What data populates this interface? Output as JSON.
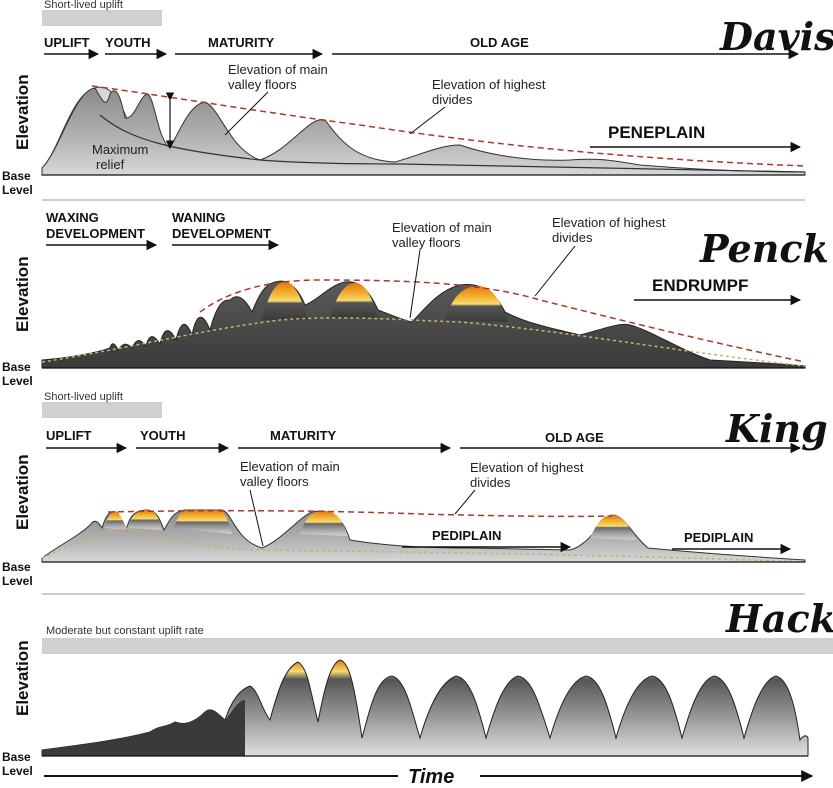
{
  "common": {
    "elevation_label": "Elevation",
    "base_label": "Base",
    "level_label": "Level",
    "time_label": "Time"
  },
  "davis": {
    "title": "Davis",
    "uplift_bar": "Short-lived uplift",
    "stages": [
      "UPLIFT",
      "YOUTH",
      "MATURITY",
      "OLD AGE"
    ],
    "valley_label": [
      "Elevation of main",
      "valley floors"
    ],
    "divide_label": [
      "Elevation of highest",
      "divides"
    ],
    "relief_label": [
      "Maximum",
      "relief"
    ],
    "end_label": "PENEPLAIN"
  },
  "penck": {
    "title": "Penck",
    "stage1": [
      "WAXING",
      "DEVELOPMENT"
    ],
    "stage2": [
      "WANING",
      "DEVELOPMENT"
    ],
    "valley_label": [
      "Elevation of main",
      "valley floors"
    ],
    "divide_label": [
      "Elevation of highest",
      "divides"
    ],
    "end_label": "ENDRUMPF"
  },
  "king": {
    "title": "King",
    "uplift_bar": "Short-lived uplift",
    "stages": [
      "UPLIFT",
      "YOUTH",
      "MATURITY",
      "OLD AGE"
    ],
    "valley_label": [
      "Elevation of main",
      "valley floors"
    ],
    "divide_label": [
      "Elevation of highest",
      "divides"
    ],
    "pediplain1": "PEDIPLAIN",
    "pediplain2": "PEDIPLAIN"
  },
  "hack": {
    "title": "Hack",
    "uplift_bar": "Moderate but constant uplift rate"
  },
  "colors": {
    "dashed_divides": "#a83a2a",
    "uplift_bar": "#d0d0d0",
    "peak_orange": "#f0a020",
    "peak_yellow": "#f4d040",
    "dark_gray": "#3a3a3a",
    "light_gray": "#bdbdbd"
  }
}
